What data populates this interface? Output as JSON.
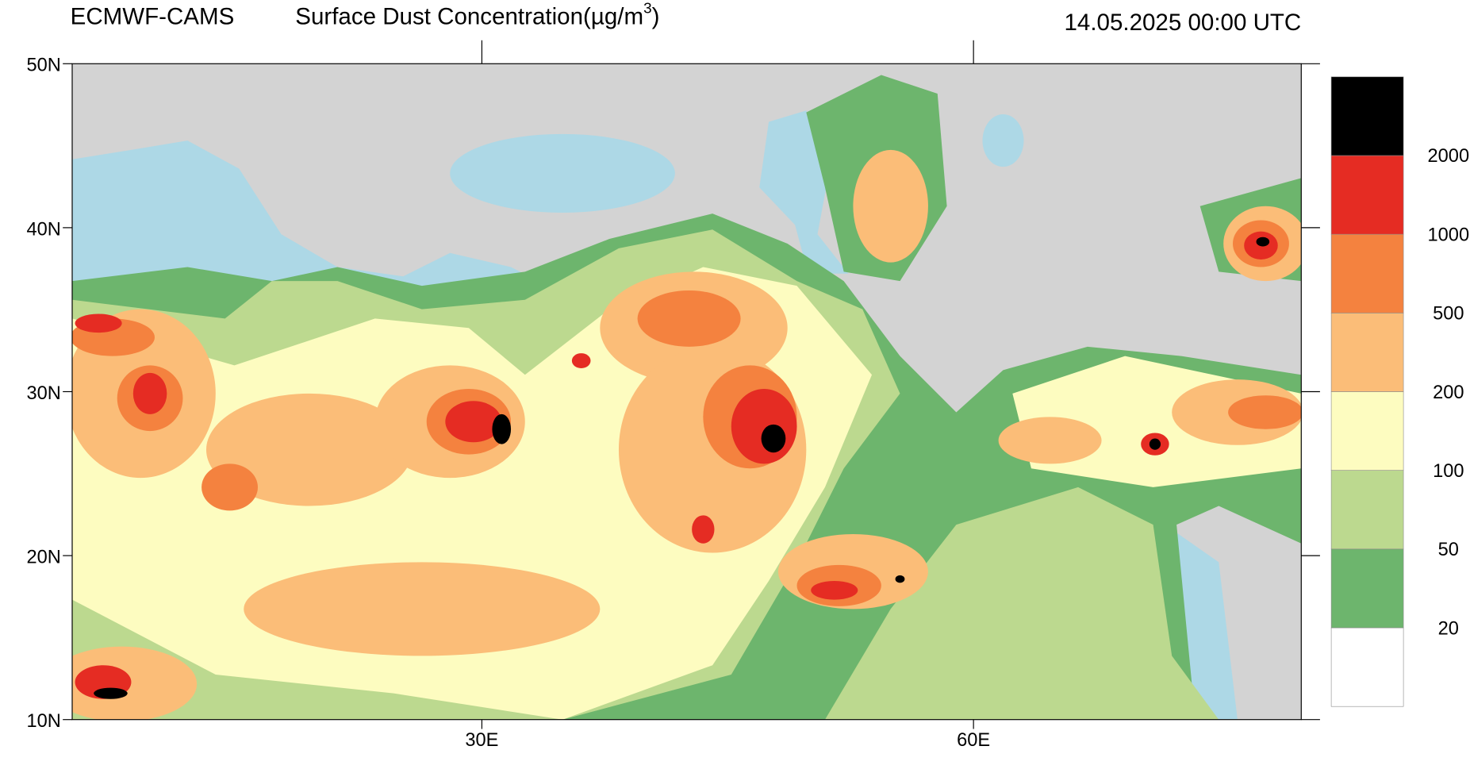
{
  "header": {
    "model": "ECMWF-CAMS",
    "title": "Surface Dust Concentration(µg/m",
    "title_sup": "3",
    "title_end": ")",
    "time": "14.05.2025 00:00 UTC"
  },
  "map": {
    "xlim": [
      5,
      80
    ],
    "ylim": [
      10,
      50
    ],
    "yticks": [
      {
        "value": 50,
        "label": "50N"
      },
      {
        "value": 40,
        "label": "40N"
      },
      {
        "value": 30,
        "label": "30N"
      },
      {
        "value": 20,
        "label": "20N"
      },
      {
        "value": 10,
        "label": "10N"
      }
    ],
    "xticks": [
      {
        "value": 30,
        "label": "30E"
      },
      {
        "value": 60,
        "label": "60E"
      }
    ],
    "land_color": "#d3d3d3",
    "sea_color": "#add8e6"
  },
  "legend": {
    "levels": [
      20,
      50,
      100,
      200,
      500,
      1000,
      2000
    ],
    "colors": [
      "#ffffff",
      "#6db56d",
      "#bcd98f",
      "#fdfcc0",
      "#fbbd78",
      "#f4823f",
      "#e52c23",
      "#000000"
    ]
  }
}
